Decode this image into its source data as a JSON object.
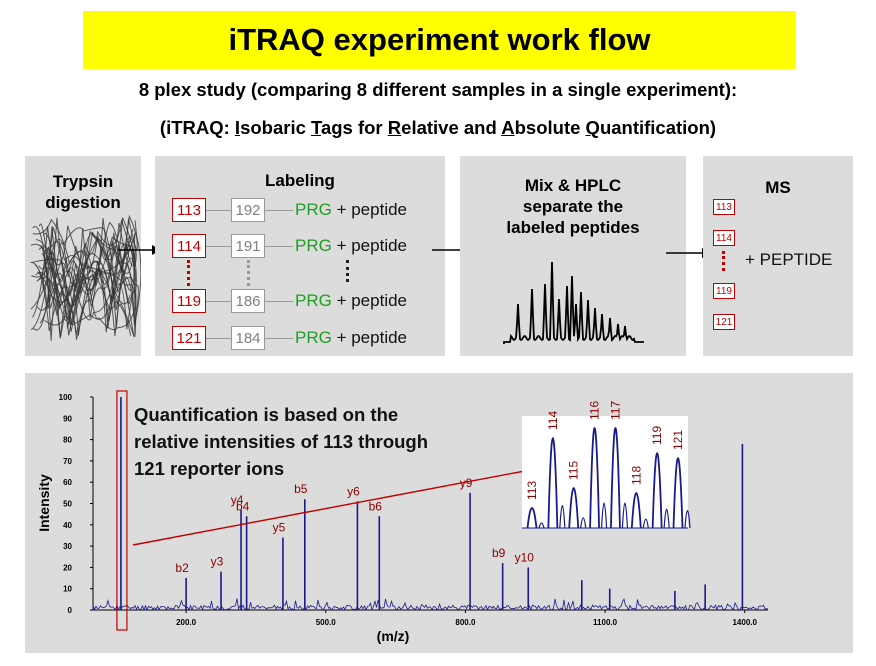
{
  "title": "iTRAQ experiment work flow",
  "subtitle1": "8 plex study (comparing 8 different samples in a single experiment):",
  "subtitle2_segments": [
    {
      "t": "(iTRAQ: ",
      "u": false
    },
    {
      "t": "I",
      "u": true
    },
    {
      "t": "sobaric ",
      "u": false
    },
    {
      "t": "T",
      "u": true
    },
    {
      "t": "ags for ",
      "u": false
    },
    {
      "t": "R",
      "u": true
    },
    {
      "t": "elative and ",
      "u": false
    },
    {
      "t": "A",
      "u": true
    },
    {
      "t": "bsolute ",
      "u": false
    },
    {
      "t": "Q",
      "u": true
    },
    {
      "t": "uantification)",
      "u": false
    }
  ],
  "trypsin": {
    "line1": "Trypsin",
    "line2": "digestion"
  },
  "labeling": {
    "title": "Labeling",
    "rows": [
      {
        "reporter": "113",
        "balance": "192",
        "prg": "PRG",
        "rest": "+ peptide"
      },
      {
        "reporter": "114",
        "balance": "191",
        "prg": "PRG",
        "rest": "+ peptide"
      },
      {
        "reporter": "119",
        "balance": "186",
        "prg": "PRG",
        "rest": "+ peptide"
      },
      {
        "reporter": "121",
        "balance": "184",
        "prg": "PRG",
        "rest": "+ peptide"
      }
    ]
  },
  "mix": {
    "line1": "Mix & HPLC",
    "line2": "separate the",
    "line3": "labeled peptides"
  },
  "ms": {
    "title": "MS",
    "tags": [
      "113",
      "114",
      "119",
      "121"
    ],
    "label": "+ PEPTIDE"
  },
  "annotation": {
    "line1": "Quantification is based on the",
    "line2": "relative intensities of 113 through",
    "line3": "121 reporter ions"
  },
  "colors": {
    "banner": "#ffff00",
    "panel": "#dcdcdc",
    "red": "#c00000",
    "prg_green": "#1e9e1e",
    "spectrum_blue": "#1a1a8c"
  },
  "chart_data": {
    "type": "line",
    "xlabel": "(m/z)",
    "ylabel": "Intensity",
    "xlim": [
      0,
      1450
    ],
    "ylim": [
      0,
      100
    ],
    "xticks": [
      "200.0",
      "500.0",
      "800.0",
      "1100.0",
      "1400.0"
    ],
    "yticks": [
      "0",
      "10",
      "20",
      "30",
      "40",
      "50",
      "60",
      "70",
      "80",
      "90",
      "100"
    ],
    "peaks": [
      {
        "mz": 60,
        "i": 100,
        "label": ""
      },
      {
        "mz": 200,
        "i": 15,
        "label": "b2"
      },
      {
        "mz": 275,
        "i": 18,
        "label": "y3"
      },
      {
        "mz": 318,
        "i": 47,
        "label": "y4"
      },
      {
        "mz": 330,
        "i": 44,
        "label": "b4"
      },
      {
        "mz": 408,
        "i": 34,
        "label": "y5"
      },
      {
        "mz": 455,
        "i": 52,
        "label": "b5"
      },
      {
        "mz": 568,
        "i": 51,
        "label": "y6"
      },
      {
        "mz": 615,
        "i": 44,
        "label": "b6"
      },
      {
        "mz": 810,
        "i": 55,
        "label": "y9"
      },
      {
        "mz": 880,
        "i": 22,
        "label": "b9"
      },
      {
        "mz": 935,
        "i": 20,
        "label": "y10"
      },
      {
        "mz": 1050,
        "i": 14,
        "label": ""
      },
      {
        "mz": 1110,
        "i": 10,
        "label": ""
      },
      {
        "mz": 1250,
        "i": 9,
        "label": ""
      },
      {
        "mz": 1315,
        "i": 12,
        "label": ""
      },
      {
        "mz": 1395,
        "i": 78,
        "label": ""
      }
    ],
    "inset": {
      "reporter_ions": [
        "113",
        "114",
        "115",
        "116",
        "117",
        "118",
        "119",
        "121"
      ],
      "values": [
        20,
        90,
        40,
        100,
        100,
        35,
        75,
        70
      ]
    }
  }
}
